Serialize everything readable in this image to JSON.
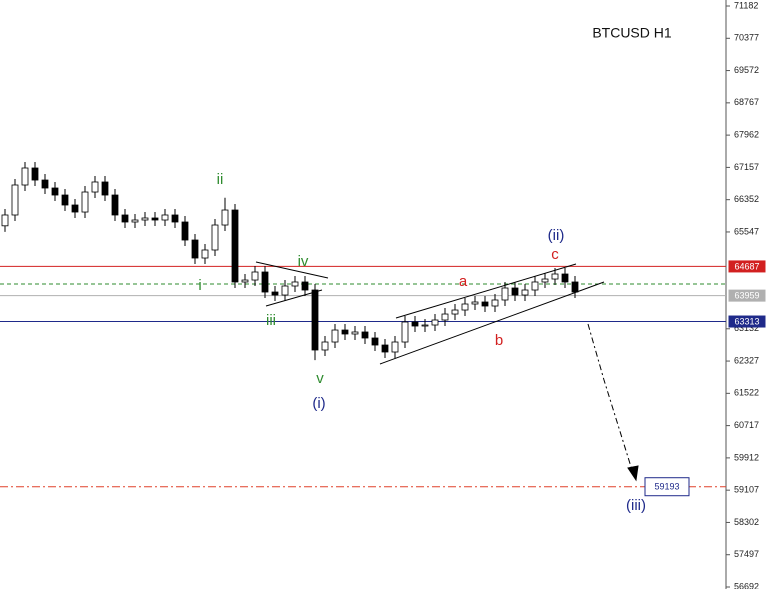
{
  "chart_data": {
    "type": "candlestick",
    "title": "BTCUSD H1",
    "ylim": [
      56642,
      71332
    ],
    "yticks": [
      71182,
      70377,
      69572,
      68767,
      67962,
      67157,
      66352,
      65547,
      63132,
      62327,
      61522,
      60717,
      59912,
      59107,
      58302,
      57497,
      56692
    ],
    "open": [
      65700,
      65970,
      66718,
      67142,
      66842,
      66643,
      66468,
      66219,
      66044,
      66543,
      66793,
      66468,
      65970,
      65795,
      65845,
      65895,
      65845,
      65970,
      65795,
      65346,
      64897,
      65097,
      65720,
      66094,
      64299,
      64348,
      64548,
      64049,
      63974,
      64199,
      64299,
      64099,
      62603,
      62802,
      63101,
      63002,
      63052,
      62902,
      62727,
      62553,
      62802,
      63301,
      63201,
      63226,
      63351,
      63500,
      63600,
      63750,
      63800,
      63700,
      63850,
      64149,
      63974,
      64099,
      64299,
      64373,
      64498,
      64299
    ],
    "high": [
      66120,
      66868,
      67292,
      67292,
      66992,
      66793,
      66618,
      66369,
      66693,
      66943,
      66943,
      66618,
      66120,
      65995,
      66045,
      66045,
      66120,
      66120,
      65945,
      65496,
      65247,
      65870,
      66400,
      66244,
      64498,
      64698,
      64698,
      64199,
      64349,
      64449,
      64449,
      64249,
      62952,
      63251,
      63251,
      63202,
      63202,
      63052,
      62877,
      62952,
      63451,
      63451,
      63376,
      63501,
      63650,
      63750,
      63900,
      63950,
      63950,
      64000,
      64299,
      64299,
      64249,
      64449,
      64523,
      64648,
      64648,
      64449
    ],
    "low": [
      65550,
      65820,
      66568,
      66692,
      66493,
      66318,
      66069,
      65894,
      65894,
      66393,
      66318,
      65820,
      65645,
      65645,
      65695,
      65695,
      65695,
      65645,
      65196,
      64747,
      64747,
      64947,
      65570,
      64149,
      64149,
      64198,
      63899,
      63824,
      63824,
      64049,
      63949,
      62350,
      62453,
      62652,
      62852,
      62852,
      62752,
      62577,
      62403,
      62403,
      62652,
      63051,
      63051,
      63076,
      63201,
      63350,
      63450,
      63600,
      63550,
      63550,
      63700,
      63824,
      63824,
      63949,
      64149,
      64223,
      64149,
      63899
    ],
    "close": [
      65970,
      66718,
      67142,
      66842,
      66643,
      66468,
      66219,
      66044,
      66543,
      66793,
      66468,
      65970,
      65795,
      65845,
      65895,
      65845,
      65970,
      65795,
      65346,
      64897,
      65097,
      65720,
      66094,
      64299,
      64348,
      64548,
      64049,
      63974,
      64199,
      64299,
      64099,
      62603,
      62802,
      63101,
      63002,
      63052,
      62902,
      62727,
      62553,
      62802,
      63301,
      63201,
      63226,
      63351,
      63500,
      63600,
      63750,
      63800,
      63700,
      63850,
      64149,
      63974,
      64099,
      64299,
      64373,
      64498,
      64299,
      64049
    ],
    "up_color": "#ffffff",
    "down_color": "#000000",
    "levels": [
      {
        "value": 64687,
        "color": "#d22020",
        "dash": "none",
        "labeled": true
      },
      {
        "value": 64249,
        "color": "#2e8b2e",
        "dash": "4 3",
        "labeled": false
      },
      {
        "value": 63959,
        "color": "#b0b0b0",
        "dash": "none",
        "labeled": true
      },
      {
        "value": 63313,
        "color": "#1f2a8a",
        "dash": "none",
        "labeled": true
      },
      {
        "value": 59193,
        "color": "#e0402a",
        "dash": "8 3 2 3",
        "labeled": true
      }
    ],
    "annotations": [
      "ii",
      "i",
      "iii",
      "iv",
      "v",
      "(i)",
      "(ii)",
      "a",
      "b",
      "c",
      "(iii)"
    ]
  }
}
